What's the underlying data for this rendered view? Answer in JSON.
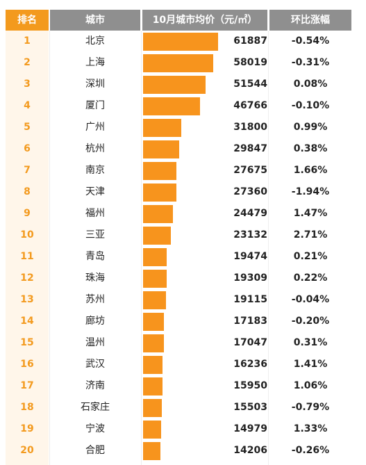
{
  "header": {
    "rank": "排名",
    "city": "城市",
    "price": "10月城市均价（元/㎡）",
    "change": "环比涨幅"
  },
  "colors": {
    "accent": "#f39a1e",
    "bar": "#f7941d",
    "header_gray": "#8f8f8f"
  },
  "chart_data": {
    "type": "bar",
    "orientation": "horizontal",
    "categories": [
      "北京",
      "上海",
      "深圳",
      "厦门",
      "广州",
      "杭州",
      "南京",
      "天津",
      "福州",
      "三亚",
      "青岛",
      "珠海",
      "苏州",
      "廊坊",
      "温州",
      "武汉",
      "济南",
      "石家庄",
      "宁波",
      "合肥"
    ],
    "values": [
      61887,
      58019,
      51544,
      46766,
      31800,
      29847,
      27675,
      27360,
      24479,
      23132,
      19474,
      19309,
      19115,
      17183,
      17047,
      16236,
      15950,
      15503,
      14979,
      14206
    ],
    "xlim": [
      0,
      61887
    ],
    "grid": false
  },
  "rows": [
    {
      "rank": "1",
      "city": "北京",
      "price": "61887",
      "change": "-0.54%"
    },
    {
      "rank": "2",
      "city": "上海",
      "price": "58019",
      "change": "-0.31%"
    },
    {
      "rank": "3",
      "city": "深圳",
      "price": "51544",
      "change": "0.08%"
    },
    {
      "rank": "4",
      "city": "厦门",
      "price": "46766",
      "change": "-0.10%"
    },
    {
      "rank": "5",
      "city": "广州",
      "price": "31800",
      "change": "0.99%"
    },
    {
      "rank": "6",
      "city": "杭州",
      "price": "29847",
      "change": "0.38%"
    },
    {
      "rank": "7",
      "city": "南京",
      "price": "27675",
      "change": "1.66%"
    },
    {
      "rank": "8",
      "city": "天津",
      "price": "27360",
      "change": "-1.94%"
    },
    {
      "rank": "9",
      "city": "福州",
      "price": "24479",
      "change": "1.47%"
    },
    {
      "rank": "10",
      "city": "三亚",
      "price": "23132",
      "change": "2.71%"
    },
    {
      "rank": "11",
      "city": "青岛",
      "price": "19474",
      "change": "0.21%"
    },
    {
      "rank": "12",
      "city": "珠海",
      "price": "19309",
      "change": "0.22%"
    },
    {
      "rank": "13",
      "city": "苏州",
      "price": "19115",
      "change": "-0.04%"
    },
    {
      "rank": "14",
      "city": "廊坊",
      "price": "17183",
      "change": "-0.20%"
    },
    {
      "rank": "15",
      "city": "温州",
      "price": "17047",
      "change": "0.31%"
    },
    {
      "rank": "16",
      "city": "武汉",
      "price": "16236",
      "change": "1.41%"
    },
    {
      "rank": "17",
      "city": "济南",
      "price": "15950",
      "change": "1.06%"
    },
    {
      "rank": "18",
      "city": "石家庄",
      "price": "15503",
      "change": "-0.79%"
    },
    {
      "rank": "19",
      "city": "宁波",
      "price": "14979",
      "change": "1.33%"
    },
    {
      "rank": "20",
      "city": "合肥",
      "price": "14206",
      "change": "-0.26%"
    }
  ]
}
